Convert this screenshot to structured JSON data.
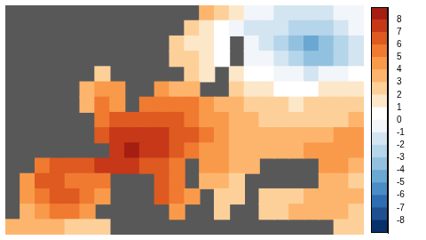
{
  "chart_data": {
    "type": "heatmap",
    "tick_labels": false,
    "cells": [
      [
        null,
        null,
        null,
        null,
        null,
        null,
        null,
        null,
        null,
        null,
        null,
        null,
        null,
        3,
        2,
        1,
        -1,
        -1,
        -2,
        -2,
        -2,
        -2,
        -1,
        -1
      ],
      [
        null,
        null,
        null,
        null,
        null,
        null,
        null,
        null,
        null,
        null,
        null,
        null,
        2,
        1,
        0,
        -1,
        -2,
        -2,
        -2,
        -3,
        -3,
        -3,
        -2,
        -1
      ],
      [
        null,
        null,
        null,
        null,
        null,
        null,
        null,
        null,
        null,
        null,
        null,
        2,
        1,
        1,
        0,
        null,
        -1,
        -2,
        -3,
        -4,
        -5,
        -4,
        -3,
        -2
      ],
      [
        null,
        null,
        null,
        null,
        null,
        null,
        null,
        null,
        null,
        null,
        null,
        2,
        2,
        1,
        0,
        null,
        -1,
        -1,
        -2,
        -3,
        -4,
        -4,
        -3,
        -2
      ],
      [
        null,
        null,
        null,
        null,
        null,
        null,
        2,
        null,
        null,
        null,
        null,
        null,
        2,
        1,
        null,
        1,
        0,
        0,
        -1,
        -1,
        -2,
        -1,
        -1,
        0
      ],
      [
        null,
        null,
        null,
        null,
        null,
        3,
        4,
        4,
        null,
        null,
        4,
        3,
        3,
        null,
        null,
        2,
        1,
        1,
        0,
        0,
        0,
        1,
        1,
        1
      ],
      [
        null,
        null,
        null,
        null,
        null,
        3,
        5,
        4,
        null,
        5,
        5,
        5,
        5,
        4,
        3,
        3,
        2,
        2,
        2,
        1,
        2,
        2,
        2,
        2
      ],
      [
        null,
        null,
        null,
        null,
        null,
        null,
        5,
        6,
        6,
        6,
        6,
        6,
        5,
        4,
        4,
        3,
        3,
        2,
        2,
        2,
        2,
        2,
        2,
        3
      ],
      [
        null,
        null,
        null,
        null,
        null,
        null,
        6,
        7,
        7,
        7,
        7,
        6,
        6,
        5,
        4,
        3,
        3,
        3,
        3,
        3,
        3,
        3,
        4,
        4
      ],
      [
        null,
        null,
        null,
        null,
        null,
        null,
        null,
        7,
        8,
        7,
        7,
        6,
        5,
        4,
        4,
        3,
        3,
        3,
        3,
        3,
        4,
        4,
        4,
        4
      ],
      [
        null,
        null,
        5,
        6,
        6,
        6,
        7,
        7,
        7,
        6,
        6,
        5,
        null,
        4,
        4,
        3,
        3,
        null,
        null,
        null,
        null,
        4,
        4,
        3
      ],
      [
        null,
        4,
        6,
        6,
        5,
        5,
        5,
        null,
        null,
        null,
        6,
        5,
        null,
        3,
        3,
        2,
        null,
        null,
        null,
        null,
        null,
        3,
        3,
        2
      ],
      [
        null,
        4,
        5,
        6,
        6,
        5,
        4,
        null,
        null,
        null,
        6,
        5,
        4,
        null,
        2,
        2,
        null,
        2,
        2,
        2,
        3,
        3,
        3,
        3
      ],
      [
        null,
        3,
        4,
        5,
        5,
        4,
        null,
        null,
        null,
        null,
        null,
        4,
        null,
        null,
        2,
        null,
        null,
        2,
        2,
        3,
        3,
        3,
        3,
        2
      ],
      [
        3,
        3,
        3,
        3,
        2,
        2,
        2,
        null,
        null,
        null,
        null,
        null,
        null,
        null,
        null,
        null,
        null,
        null,
        null,
        null,
        null,
        null,
        2,
        2
      ]
    ],
    "colorbar": {
      "range": [
        -9,
        9
      ],
      "ticks": [
        -8,
        -7,
        -6,
        -5,
        -4,
        -3,
        -2,
        -1,
        0,
        1,
        2,
        3,
        4,
        5,
        6,
        7,
        8
      ],
      "colors": [
        "#08306b",
        "#1d4f91",
        "#2f6db3",
        "#4a8cc4",
        "#6aa7d3",
        "#92c1e0",
        "#b5d5ea",
        "#d3e5f1",
        "#f2f6fa",
        "#ffffff",
        "#fde7c9",
        "#fdd09a",
        "#fdb56d",
        "#f99a4a",
        "#f07a30",
        "#de5a21",
        "#c63818",
        "#a51e12"
      ]
    }
  }
}
